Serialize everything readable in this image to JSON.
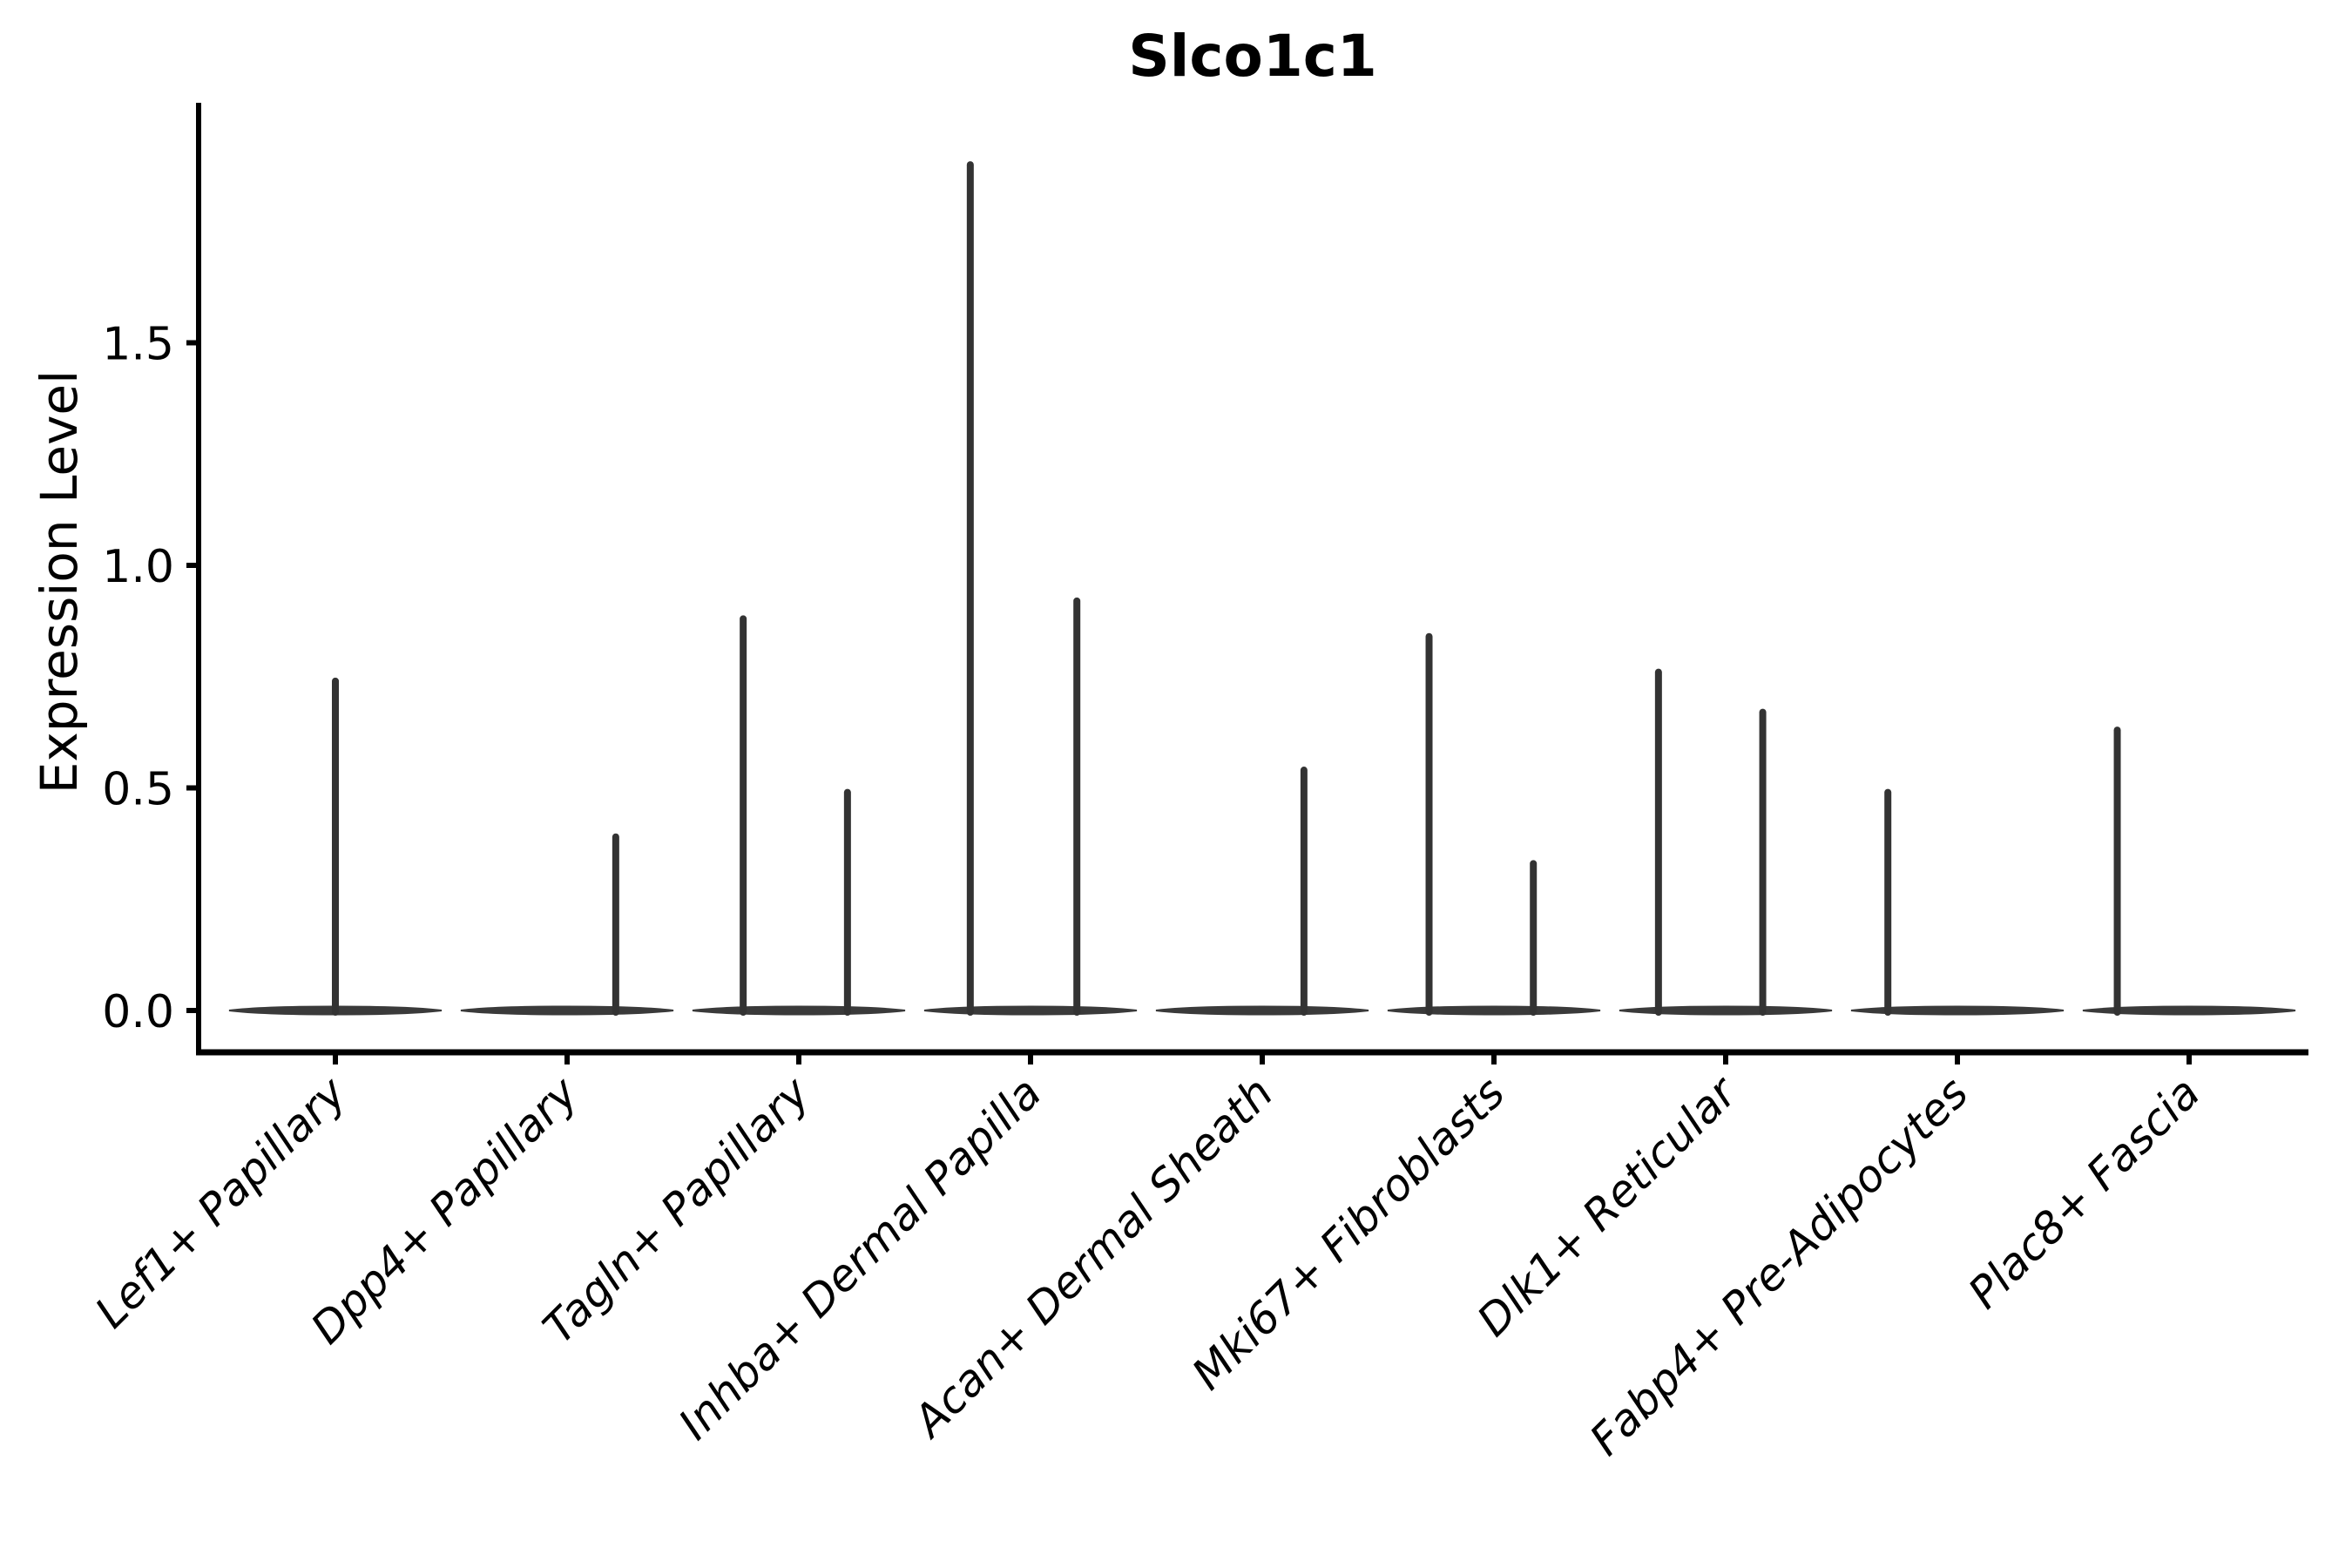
{
  "figure": {
    "title": "Slco1c1",
    "ylabel": "Expression Level"
  },
  "chart_data": {
    "type": "violin",
    "title": "Slco1c1",
    "xlabel": "",
    "ylabel": "Expression Level",
    "ylim": [
      -0.1,
      2.04
    ],
    "grid": false,
    "legend": "none",
    "yticks": [
      {
        "value": 0.0,
        "label": "0.0"
      },
      {
        "value": 0.5,
        "label": "0.5"
      },
      {
        "value": 1.0,
        "label": "1.0"
      },
      {
        "value": 1.5,
        "label": "1.5"
      }
    ],
    "categories": [
      "Lef1+ Papillary",
      "Dpp4+ Papillary",
      "Tagln+ Papillary",
      "Inhba+ Dermal Papilla",
      "Acan+ Dermal Sheath",
      "Mki67+ Fibroblasts",
      "Dlk1+ Reticular",
      "Fabp4+ Pre-Adipocytes",
      "Plac8+ Fascia"
    ],
    "description": "Violin plot of Slco1c1 expression per fibroblast cluster; each violin is flat at 0 (most cells do not express) with thin spikes marking the maximum expression of rare positive cells.",
    "baseline_value": 0.0,
    "series": [
      {
        "name": "Lef1+ Papillary",
        "spikes": [
          {
            "offset": 0.0,
            "value": 0.74
          }
        ]
      },
      {
        "name": "Dpp4+ Papillary",
        "spikes": [
          {
            "offset": 0.21,
            "value": 0.39
          }
        ]
      },
      {
        "name": "Tagln+ Papillary",
        "spikes": [
          {
            "offset": -0.24,
            "value": 0.88
          },
          {
            "offset": 0.21,
            "value": 0.49
          }
        ]
      },
      {
        "name": "Inhba+ Dermal Papilla",
        "spikes": [
          {
            "offset": -0.26,
            "value": 1.9
          },
          {
            "offset": 0.2,
            "value": 0.92
          }
        ]
      },
      {
        "name": "Acan+ Dermal Sheath",
        "spikes": [
          {
            "offset": 0.18,
            "value": 0.54
          }
        ]
      },
      {
        "name": "Mki67+ Fibroblasts",
        "spikes": [
          {
            "offset": -0.28,
            "value": 0.84
          },
          {
            "offset": 0.17,
            "value": 0.33
          }
        ]
      },
      {
        "name": "Dlk1+ Reticular",
        "spikes": [
          {
            "offset": -0.29,
            "value": 0.76
          },
          {
            "offset": 0.16,
            "value": 0.67
          }
        ]
      },
      {
        "name": "Fabp4+ Pre-Adipocytes",
        "spikes": [
          {
            "offset": -0.3,
            "value": 0.49
          }
        ]
      },
      {
        "name": "Plac8+ Fascia",
        "spikes": [
          {
            "offset": -0.31,
            "value": 0.63
          }
        ]
      }
    ],
    "colors": {
      "violin": "#333333",
      "violin_base": "#3a3a3a",
      "axis": "#000000",
      "text": "#000000",
      "background": "#ffffff"
    }
  }
}
